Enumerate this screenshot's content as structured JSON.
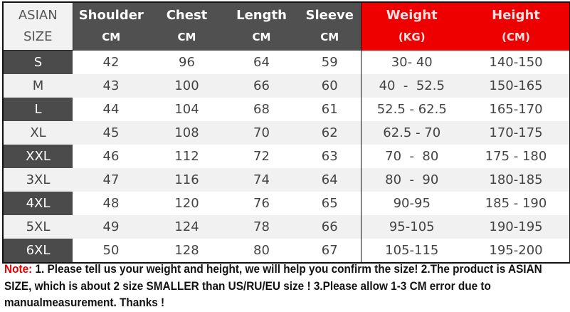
{
  "table": {
    "headers": [
      {
        "title": "ASIAN",
        "unit": "SIZE"
      },
      {
        "title": "Shoulder",
        "unit": "CM"
      },
      {
        "title": "Chest",
        "unit": "CM"
      },
      {
        "title": "Length",
        "unit": "CM"
      },
      {
        "title": "Sleeve",
        "unit": "CM"
      },
      {
        "title": "Weight",
        "unit": "(KG)"
      },
      {
        "title": "Height",
        "unit": "(CM)"
      }
    ],
    "rows": [
      [
        "S",
        "42",
        "96",
        "64",
        "59",
        "30- 40",
        "140-150"
      ],
      [
        "M",
        "43",
        "100",
        "66",
        "60",
        "40  -  52.5",
        "150-165"
      ],
      [
        "L",
        "44",
        "104",
        "68",
        "61",
        "52.5 - 62.5",
        "165-170"
      ],
      [
        "XL",
        "45",
        "108",
        "70",
        "62",
        "62.5 - 70",
        "170-175"
      ],
      [
        "XXL",
        "46",
        "112",
        "72",
        "63",
        "70  -  80",
        "175 - 180"
      ],
      [
        "3XL",
        "47",
        "116",
        "74",
        "64",
        "80  -  90",
        "180-185"
      ],
      [
        "4XL",
        "48",
        "120",
        "76",
        "65",
        "90-95",
        "185 - 190"
      ],
      [
        "5XL",
        "49",
        "124",
        "78",
        "66",
        "95-105",
        "190-195"
      ],
      [
        "6XL",
        "50",
        "128",
        "80",
        "67",
        "105-115",
        "195-200"
      ]
    ],
    "colors": {
      "header_dark": "#505050",
      "header_red": "#ee0000"
    }
  },
  "note": {
    "label": "Note:",
    "text": " 1. Please tell us your weight and height, we will help you confirm the size!  2.The product is ASIAN SIZE, which is about 2 size SMALLER than US/RU/EU size ! 3.Please allow 1-3 CM error due to manualmeasurement.  Thanks !"
  }
}
